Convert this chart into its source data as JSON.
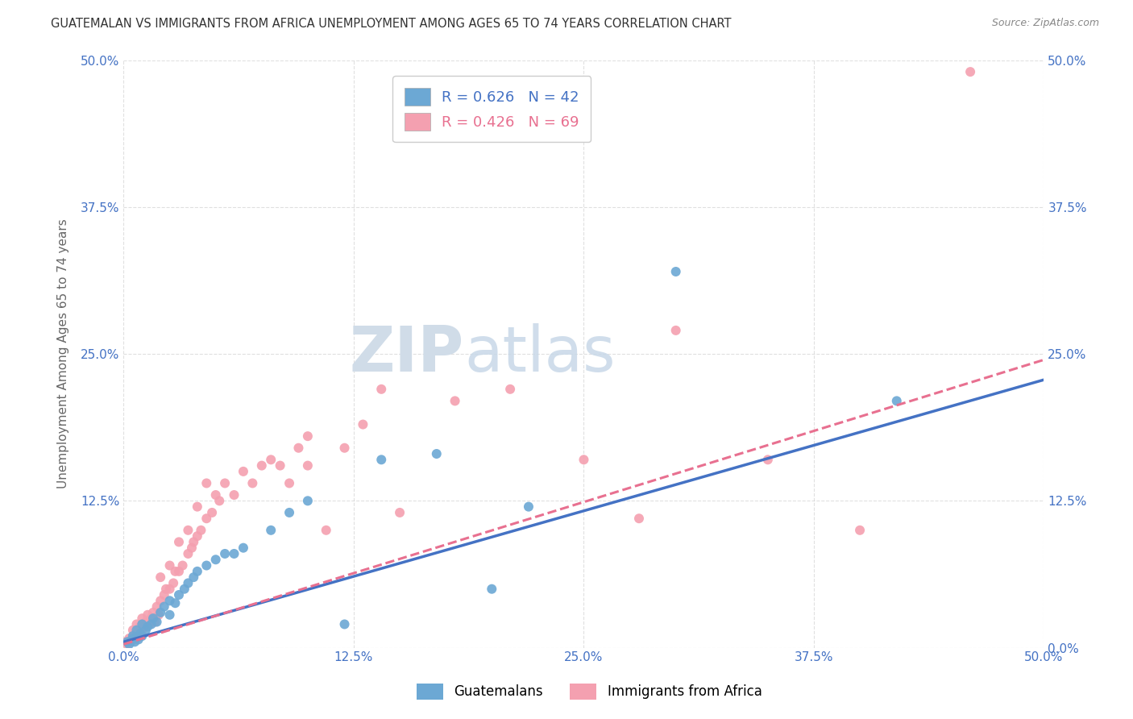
{
  "title": "GUATEMALAN VS IMMIGRANTS FROM AFRICA UNEMPLOYMENT AMONG AGES 65 TO 74 YEARS CORRELATION CHART",
  "source": "Source: ZipAtlas.com",
  "ylabel": "Unemployment Among Ages 65 to 74 years",
  "xlim": [
    0,
    0.5
  ],
  "ylim": [
    0,
    0.5
  ],
  "xticks": [
    0.0,
    0.125,
    0.25,
    0.375,
    0.5
  ],
  "yticks": [
    0.0,
    0.125,
    0.25,
    0.375,
    0.5
  ],
  "xticklabels": [
    "0.0%",
    "12.5%",
    "25.0%",
    "37.5%",
    "50.0%"
  ],
  "left_yticklabels": [
    "",
    "12.5%",
    "25.0%",
    "37.5%",
    "50.0%"
  ],
  "right_yticklabels": [
    "0.0%",
    "12.5%",
    "25.0%",
    "37.5%",
    "50.0%"
  ],
  "guatemalan_color": "#6ca8d4",
  "africa_color": "#f4a0b0",
  "trend_blue": "#4472c4",
  "trend_pink": "#e87090",
  "legend_label_1": "Guatemalans",
  "legend_label_2": "Immigrants from Africa",
  "background_color": "#ffffff",
  "watermark_zip": "ZIP",
  "watermark_atlas": "atlas",
  "watermark_color": "#d0dce8",
  "title_color": "#333333",
  "tick_label_color": "#4472c4",
  "grid_color": "#cccccc",
  "guatemalan_x": [
    0.002,
    0.003,
    0.004,
    0.005,
    0.005,
    0.006,
    0.007,
    0.007,
    0.008,
    0.009,
    0.01,
    0.01,
    0.012,
    0.013,
    0.015,
    0.016,
    0.018,
    0.02,
    0.022,
    0.025,
    0.025,
    0.028,
    0.03,
    0.033,
    0.035,
    0.038,
    0.04,
    0.045,
    0.05,
    0.055,
    0.06,
    0.065,
    0.08,
    0.09,
    0.1,
    0.12,
    0.14,
    0.17,
    0.2,
    0.22,
    0.3,
    0.42
  ],
  "guatemalan_y": [
    0.005,
    0.003,
    0.006,
    0.008,
    0.01,
    0.005,
    0.009,
    0.015,
    0.007,
    0.012,
    0.01,
    0.02,
    0.015,
    0.018,
    0.02,
    0.025,
    0.022,
    0.03,
    0.035,
    0.04,
    0.028,
    0.038,
    0.045,
    0.05,
    0.055,
    0.06,
    0.065,
    0.07,
    0.075,
    0.08,
    0.08,
    0.085,
    0.1,
    0.115,
    0.125,
    0.02,
    0.16,
    0.165,
    0.05,
    0.12,
    0.32,
    0.21
  ],
  "africa_x": [
    0.001,
    0.002,
    0.003,
    0.004,
    0.005,
    0.005,
    0.006,
    0.007,
    0.007,
    0.008,
    0.009,
    0.01,
    0.01,
    0.011,
    0.012,
    0.013,
    0.014,
    0.015,
    0.016,
    0.017,
    0.018,
    0.019,
    0.02,
    0.02,
    0.022,
    0.023,
    0.025,
    0.025,
    0.027,
    0.028,
    0.03,
    0.03,
    0.032,
    0.035,
    0.035,
    0.037,
    0.038,
    0.04,
    0.04,
    0.042,
    0.045,
    0.045,
    0.048,
    0.05,
    0.052,
    0.055,
    0.06,
    0.065,
    0.07,
    0.075,
    0.08,
    0.085,
    0.09,
    0.095,
    0.1,
    0.1,
    0.11,
    0.12,
    0.13,
    0.14,
    0.15,
    0.18,
    0.21,
    0.25,
    0.28,
    0.3,
    0.35,
    0.4,
    0.46
  ],
  "africa_y": [
    0.005,
    0.003,
    0.008,
    0.005,
    0.01,
    0.015,
    0.007,
    0.012,
    0.02,
    0.009,
    0.018,
    0.015,
    0.025,
    0.018,
    0.022,
    0.028,
    0.02,
    0.025,
    0.03,
    0.022,
    0.035,
    0.028,
    0.04,
    0.06,
    0.045,
    0.05,
    0.05,
    0.07,
    0.055,
    0.065,
    0.065,
    0.09,
    0.07,
    0.08,
    0.1,
    0.085,
    0.09,
    0.095,
    0.12,
    0.1,
    0.11,
    0.14,
    0.115,
    0.13,
    0.125,
    0.14,
    0.13,
    0.15,
    0.14,
    0.155,
    0.16,
    0.155,
    0.14,
    0.17,
    0.155,
    0.18,
    0.1,
    0.17,
    0.19,
    0.22,
    0.115,
    0.21,
    0.22,
    0.16,
    0.11,
    0.27,
    0.16,
    0.1,
    0.49
  ],
  "trend_blue_x0": 0.0,
  "trend_blue_y0": 0.005,
  "trend_blue_x1": 0.5,
  "trend_blue_y1": 0.228,
  "trend_pink_x0": 0.0,
  "trend_pink_y0": 0.003,
  "trend_pink_x1": 0.5,
  "trend_pink_y1": 0.245
}
